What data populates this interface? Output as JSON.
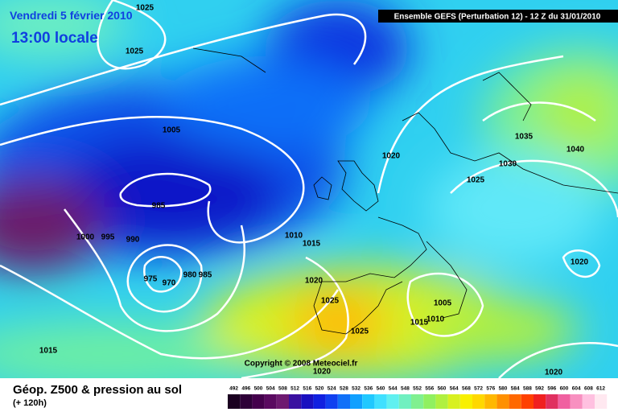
{
  "header": {
    "date": "Vendredi 5 février 2010",
    "time": "13:00 locale",
    "model": "Ensemble GEFS (Perturbation 12)  -  12 Z du 31/01/2010",
    "copyright": "Copyright © 2008 Meteociel.fr"
  },
  "footer": {
    "title": "Géop. Z500 & pression au sol",
    "lead": "(+ 120h)"
  },
  "isobar_labels": [
    "1025",
    "1025",
    "1005",
    "985",
    "1000",
    "995",
    "990",
    "975",
    "970",
    "980",
    "985",
    "1010",
    "1015",
    "1020",
    "1025",
    "1025",
    "1015",
    "1020",
    "1025",
    "1030",
    "1035",
    "1040",
    "1020",
    "1005",
    "1015",
    "1010",
    "1020",
    "1020"
  ],
  "legend": {
    "values": [
      492,
      496,
      500,
      504,
      508,
      512,
      516,
      520,
      524,
      528,
      532,
      536,
      540,
      544,
      548,
      552,
      556,
      560,
      564,
      568,
      572,
      576,
      580,
      584,
      588,
      592,
      596,
      600,
      604,
      608,
      612
    ],
    "colors": [
      "#1a0020",
      "#2e0038",
      "#44004c",
      "#5a0a60",
      "#6e1a70",
      "#3a10a0",
      "#1a10c0",
      "#1020e0",
      "#1040f0",
      "#1070f8",
      "#10a0ff",
      "#20c8ff",
      "#40e0ff",
      "#60f0f0",
      "#70f0c0",
      "#80f090",
      "#90f060",
      "#b0f040",
      "#d8f020",
      "#f8f000",
      "#ffd800",
      "#ffb800",
      "#ff9000",
      "#ff6800",
      "#ff4000",
      "#f02020",
      "#e03060",
      "#f060a0",
      "#f890c0",
      "#ffc0e0",
      "#ffe8f0"
    ]
  }
}
